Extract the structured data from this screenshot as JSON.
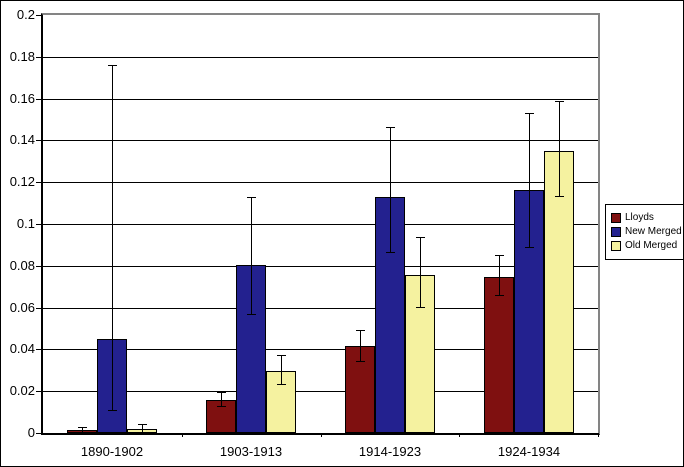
{
  "chart_data": {
    "type": "bar",
    "title": "",
    "xlabel": "",
    "ylabel": "",
    "categories": [
      "1890-1902",
      "1903-1913",
      "1914-1923",
      "1924-1934"
    ],
    "series": [
      {
        "name": "Lloyds",
        "color": "#7F1010",
        "values": [
          0.0015,
          0.016,
          0.0415,
          0.0745
        ],
        "err_low": [
          0.0005,
          0.013,
          0.0345,
          0.066
        ],
        "err_high": [
          0.003,
          0.0195,
          0.0495,
          0.085
        ]
      },
      {
        "name": "New Merged",
        "color": "#23218F",
        "values": [
          0.045,
          0.0805,
          0.113,
          0.1165
        ],
        "err_low": [
          0.011,
          0.057,
          0.0865,
          0.089
        ],
        "err_high": [
          0.176,
          0.113,
          0.1465,
          0.153
        ]
      },
      {
        "name": "Old Merged",
        "color": "#F5F2A0",
        "values": [
          0.002,
          0.0295,
          0.0755,
          0.135
        ],
        "err_low": [
          0.0005,
          0.0235,
          0.0605,
          0.1135
        ],
        "err_high": [
          0.0045,
          0.0375,
          0.094,
          0.159
        ]
      }
    ],
    "ylim": [
      0,
      0.2
    ],
    "ytick_step": 0.02,
    "ytick_labels": [
      "0.2",
      "0.18",
      "0.16",
      "0.14",
      "0.12",
      "0.1",
      "0.08",
      "0.06",
      "0.04",
      "0.02",
      "0"
    ],
    "grid": true,
    "error_bars": true,
    "legend_position": "right",
    "colors": {
      "axis": "#000000",
      "plot_border": "#848484",
      "gridline": "#000000",
      "background": "#ffffff"
    }
  },
  "legend": {
    "entries": [
      "Lloyds",
      "New Merged",
      "Old Merged"
    ]
  }
}
